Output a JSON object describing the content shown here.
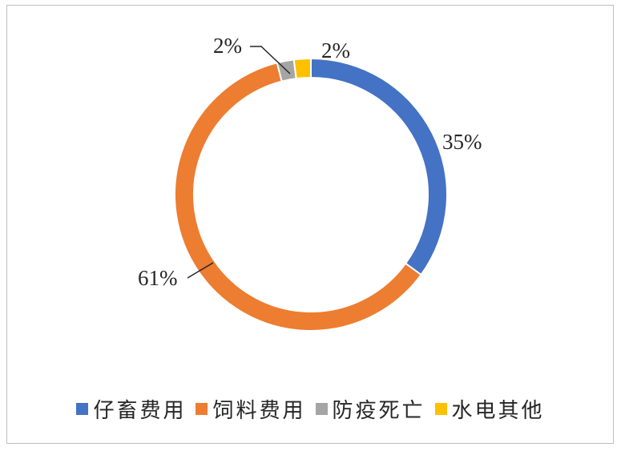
{
  "chart_data": {
    "type": "pie",
    "variant": "donut",
    "categories": [
      "仔畜费用",
      "饲料费用",
      "防疫死亡",
      "水电其他"
    ],
    "values": [
      35,
      61,
      2,
      2
    ],
    "labels": [
      "35%",
      "61%",
      "2%",
      "2%"
    ],
    "colors": [
      "#4472c4",
      "#ed7d31",
      "#a5a5a5",
      "#ffc000"
    ],
    "legend_position": "bottom",
    "title": ""
  }
}
